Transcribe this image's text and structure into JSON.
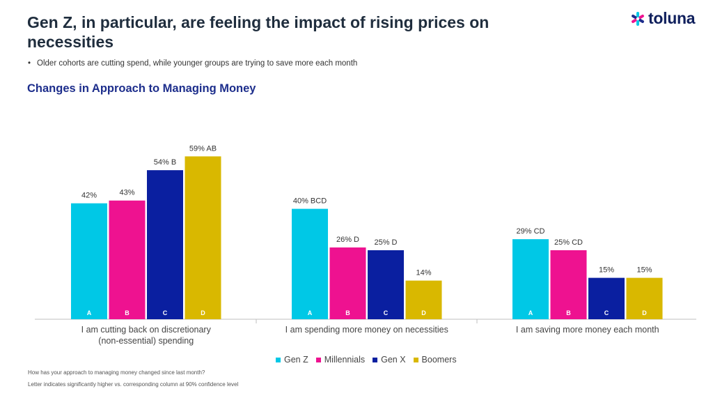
{
  "header": {
    "title": "Gen Z, in particular, are feeling the impact of rising prices on necessities",
    "bullet": "Older cohorts are cutting spend, while younger groups are trying to save more each month",
    "logo_text": "toluna",
    "logo_icon": "asterisk-flower-icon"
  },
  "chart_data": {
    "type": "bar",
    "title": "Changes in Approach to Managing Money",
    "categories": [
      [
        "I am cutting back on discretionary",
        "(non-essential) spending"
      ],
      [
        "I am spending more money on necessities"
      ],
      [
        "I am saving more money each month"
      ]
    ],
    "series": [
      {
        "name": "Gen Z",
        "letter": "A",
        "color": "#00c8e6",
        "values": [
          42,
          40,
          29
        ],
        "labels": [
          "42%",
          "40% BCD",
          "29% CD"
        ]
      },
      {
        "name": "Millennials",
        "letter": "B",
        "color": "#ee1290",
        "values": [
          43,
          26,
          25
        ],
        "labels": [
          "43%",
          "26% D",
          "25% CD"
        ]
      },
      {
        "name": "Gen X",
        "letter": "C",
        "color": "#0a1fa0",
        "values": [
          54,
          25,
          15
        ],
        "labels": [
          "54% B",
          "25% D",
          "15%"
        ]
      },
      {
        "name": "Boomers",
        "letter": "D",
        "color": "#d9b800",
        "values": [
          59,
          14,
          15
        ],
        "labels": [
          "59% AB",
          "14%",
          "15%"
        ]
      }
    ],
    "ylim": [
      0,
      100
    ],
    "legend_position": "bottom-center",
    "grid": false
  },
  "footnotes": [
    "How has your approach to managing money changed since last month?",
    "Letter indicates significantly higher vs. corresponding column at 90% confidence level"
  ]
}
